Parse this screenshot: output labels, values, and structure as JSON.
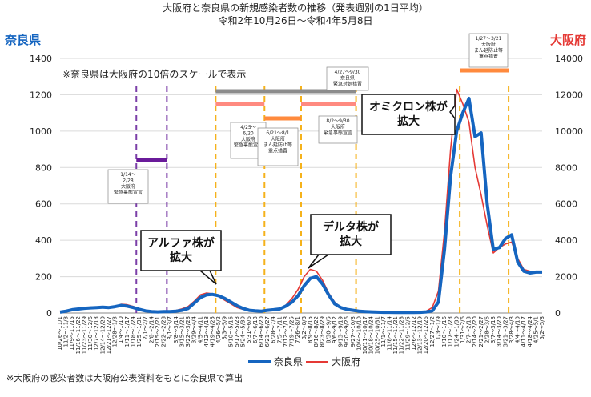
{
  "chart_data": {
    "type": "line",
    "title": "大阪府と奈良県の新規感染者数の推移（発表週別の1日平均）",
    "subtitle": "令和2年10月26日～令和4年5月8日",
    "left_axis": {
      "label": "奈良県",
      "ylim": [
        0,
        1400
      ],
      "ticks": [
        "0",
        "200",
        "400",
        "600",
        "800",
        "1000",
        "1200",
        "1400"
      ]
    },
    "right_axis": {
      "label": "大阪府",
      "ylim": [
        0,
        14000
      ],
      "ticks": [
        "0",
        "2000",
        "4000",
        "6000",
        "8000",
        "10000",
        "12000",
        "14000"
      ]
    },
    "x": [
      "10/26～11/1",
      "11/2～11/8",
      "11/9～11/15",
      "11/16～11/22",
      "11/23～11/29",
      "11/30～12/6",
      "12/7～12/13",
      "12/14～12/20",
      "12/21～12/27",
      "12/28～1/3",
      "1/4～1/10",
      "1/11～1/17",
      "1/18～1/24",
      "1/25～1/31",
      "2/1～2/7",
      "2/8～2/14",
      "2/15～2/21",
      "2/22～2/28",
      "3/1～3/7",
      "3/8～3/14",
      "3/15～3/21",
      "3/22～3/28",
      "3/29～4/4",
      "4/5～4/11",
      "4/12～4/18",
      "4/19～4/25",
      "4/26～5/2",
      "5/3～5/9",
      "5/10～5/16",
      "5/17～5/23",
      "5/24～5/30",
      "5/31～6/6",
      "6/7～6/13",
      "6/14～6/20",
      "6/21～6/27",
      "6/28～7/4",
      "7/5～7/11",
      "7/12～7/18",
      "7/19～7/25",
      "7/26～8/1",
      "8/2～8/8",
      "8/9～8/15",
      "8/16～8/22",
      "8/23～8/29",
      "8/30～9/5",
      "9/6～9/12",
      "9/13～9/19",
      "9/20～9/26",
      "9/27～10/3",
      "10/4～10/10",
      "10/11～10/17",
      "10/18～10/24",
      "10/25～10/31",
      "11/1～11/7",
      "11/8～11/14",
      "11/15～11/21",
      "11/22～11/28",
      "11/29～12/5",
      "12/6～12/12",
      "12/13～12/19",
      "12/20～12/26",
      "12/27～1/2",
      "1/3～1/9",
      "1/10～1/16",
      "1/17～1/23",
      "1/24～1/30",
      "1/31～2/6",
      "2/7～2/13",
      "2/14～2/20",
      "2/21～2/27",
      "2/28～3/6",
      "3/7～3/13",
      "3/14～3/20",
      "3/21～3/27",
      "3/28～4/3",
      "4/4～4/10",
      "4/11～4/17",
      "4/18～4/24",
      "4/25～5/1",
      "5/2～5/8"
    ],
    "series": [
      {
        "name": "奈良県",
        "axis": "left",
        "color": "#1565C0",
        "values": [
          5,
          10,
          18,
          22,
          26,
          28,
          30,
          32,
          30,
          35,
          42,
          38,
          30,
          20,
          12,
          8,
          6,
          8,
          8,
          10,
          15,
          25,
          55,
          85,
          100,
          102,
          95,
          80,
          60,
          40,
          25,
          15,
          12,
          10,
          15,
          18,
          22,
          38,
          60,
          95,
          150,
          190,
          200,
          160,
          100,
          50,
          30,
          20,
          15,
          10,
          8,
          6,
          5,
          4,
          4,
          3,
          3,
          3,
          3,
          4,
          6,
          12,
          60,
          350,
          750,
          1000,
          1100,
          1180,
          970,
          990,
          600,
          350,
          360,
          410,
          430,
          280,
          230,
          220,
          225,
          225
        ]
      },
      {
        "name": "大阪府",
        "axis": "right",
        "color": "#E53935",
        "values": [
          60,
          110,
          180,
          240,
          300,
          320,
          320,
          300,
          280,
          330,
          480,
          460,
          360,
          240,
          140,
          80,
          60,
          70,
          90,
          140,
          230,
          360,
          650,
          1000,
          1100,
          1060,
          900,
          700,
          500,
          300,
          200,
          150,
          120,
          110,
          130,
          170,
          260,
          430,
          800,
          1300,
          2000,
          2400,
          2300,
          1800,
          1100,
          600,
          300,
          180,
          100,
          70,
          50,
          40,
          30,
          30,
          30,
          30,
          30,
          30,
          40,
          60,
          100,
          300,
          1200,
          4500,
          9000,
          12300,
          11500,
          10500,
          8000,
          6500,
          4800,
          3300,
          3600,
          3800,
          3900,
          3000,
          2400,
          2300,
          2250,
          2200
        ]
      }
    ],
    "periods": [
      {
        "range": [
          12.5,
          17.5
        ],
        "label": "1/14～\n2/28\n大阪府\n緊急事態宣言",
        "color": "#6A1B9A",
        "line_color": "#7B3FA8"
      },
      {
        "range": [
          25.5,
          33.5
        ],
        "label": "4/25～\n6/20\n大阪府\n緊急事態宣言",
        "color": "#FF8A80",
        "line_color": "#F5B21B"
      },
      {
        "range": [
          33.5,
          39.5
        ],
        "label": "6/21～8/1\n大阪府\nまん延防止等\n重点措置",
        "color": "#FF8A3D",
        "line_color": "#F5B21B"
      },
      {
        "range": [
          39.5,
          48.5
        ],
        "label": "8/2～9/30\n大阪府\n緊急事態宣言",
        "color": "#FF8A80",
        "line_color": "#F5B21B"
      },
      {
        "range": [
          25.5,
          48.5
        ],
        "label": "4/27～9/30\n奈良県\n緊急対処措置",
        "color": "#8C8C8C",
        "line_color": "#8C8C8C"
      },
      {
        "range": [
          65.5,
          73.5
        ],
        "label": "1/27～3/21\n大阪府\nまん延防止等\n重点措置",
        "color": "#FF8A3D",
        "line_color": "#F5B21B"
      }
    ],
    "annotations": {
      "note": "※奈良県は大阪府の10倍のスケールで表示",
      "alpha": "アルファ株が\n拡大",
      "delta": "デルタ株が\n拡大",
      "omicron": "オミクロン株が\n拡大"
    },
    "legend": {
      "placement": "bottom",
      "entries": [
        "奈良県",
        "大阪府"
      ]
    },
    "footnote": "※大阪府の感染者数は大阪府公表資料をもとに奈良県で算出",
    "grid": true
  }
}
